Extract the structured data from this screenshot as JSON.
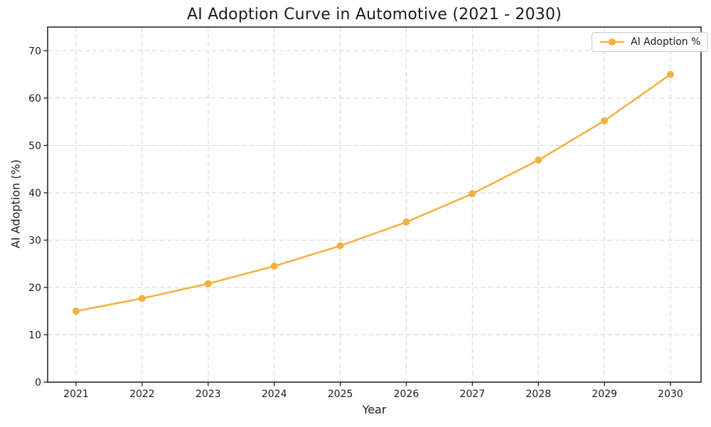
{
  "figure": {
    "background": "#ffffff"
  },
  "chart_data": {
    "type": "line",
    "title": "AI Adoption Curve in Automotive (2021 - 2030)",
    "xlabel": "Year",
    "ylabel": "AI Adoption (%)",
    "categories": [
      "2021",
      "2022",
      "2023",
      "2024",
      "2025",
      "2026",
      "2027",
      "2028",
      "2029",
      "2030"
    ],
    "series": [
      {
        "name": "AI Adoption %",
        "values": [
          15.0,
          17.7,
          20.8,
          24.5,
          28.8,
          33.8,
          39.8,
          46.9,
          55.2,
          65.0
        ]
      }
    ],
    "ylim": [
      0,
      75
    ],
    "yticks": [
      0,
      10,
      20,
      30,
      40,
      50,
      60,
      70
    ],
    "grid": true,
    "grid_style": "dashed",
    "legend_position": "top-right",
    "colors": {
      "line": "#F5B041",
      "marker": "#F5B041",
      "grid": "#d4d4d4",
      "spine": "#1a1a1a",
      "text": "#1a1a1a",
      "legend_border": "#c9c9c9"
    },
    "marker": "circle"
  }
}
